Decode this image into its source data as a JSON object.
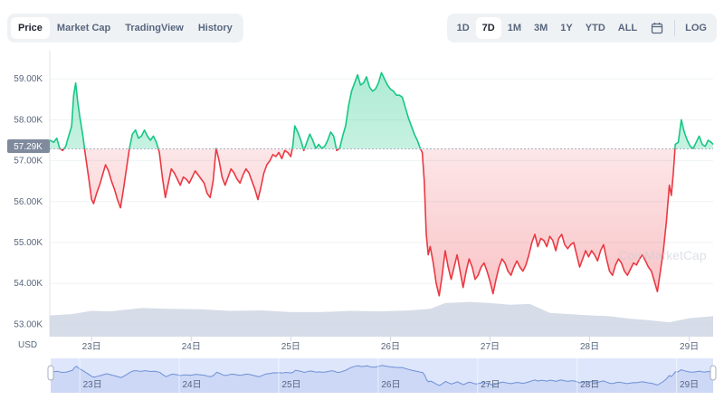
{
  "tabs": [
    {
      "label": "Price",
      "active": true
    },
    {
      "label": "Market Cap",
      "active": false
    },
    {
      "label": "TradingView",
      "active": false
    },
    {
      "label": "History",
      "active": false
    }
  ],
  "ranges": [
    {
      "label": "1D",
      "active": false
    },
    {
      "label": "7D",
      "active": true
    },
    {
      "label": "1M",
      "active": false
    },
    {
      "label": "3M",
      "active": false
    },
    {
      "label": "1Y",
      "active": false
    },
    {
      "label": "YTD",
      "active": false
    },
    {
      "label": "ALL",
      "active": false
    }
  ],
  "log_label": "LOG",
  "currency_label": "USD",
  "current_price_label": "57.29K",
  "watermark": "CoinMarketCap",
  "colors": {
    "up": "#16c784",
    "down": "#ea3943",
    "volume": "#cfd6e4",
    "navigator": "#dde6fb",
    "navigator_line": "#6f8fd6",
    "current_tag": "#808a9d"
  },
  "chart_data": {
    "type": "line",
    "baseline": 57290,
    "ylim": [
      52700,
      59600
    ],
    "y_ticks": [
      53000,
      54000,
      55000,
      56000,
      57000,
      58000,
      59000
    ],
    "y_tick_labels": [
      "53.00K",
      "54.00K",
      "55.00K",
      "56.00K",
      "57.00K",
      "58.00K",
      "59.00K"
    ],
    "x_ticks": [
      23,
      24,
      25,
      26,
      27,
      28,
      29
    ],
    "x_tick_labels": [
      "23日",
      "24日",
      "25日",
      "26日",
      "27日",
      "28日",
      "29日"
    ],
    "xlim": [
      22.58,
      29.24
    ],
    "points": [
      [
        22.58,
        57500
      ],
      [
        22.62,
        57450
      ],
      [
        22.65,
        57550
      ],
      [
        22.68,
        57300
      ],
      [
        22.71,
        57250
      ],
      [
        22.74,
        57350
      ],
      [
        22.77,
        57600
      ],
      [
        22.8,
        57850
      ],
      [
        22.82,
        58600
      ],
      [
        22.84,
        58900
      ],
      [
        22.86,
        58450
      ],
      [
        22.88,
        58100
      ],
      [
        22.91,
        57650
      ],
      [
        22.94,
        57100
      ],
      [
        22.97,
        56600
      ],
      [
        23.0,
        56050
      ],
      [
        23.02,
        55950
      ],
      [
        23.05,
        56200
      ],
      [
        23.08,
        56400
      ],
      [
        23.11,
        56650
      ],
      [
        23.14,
        56900
      ],
      [
        23.17,
        56750
      ],
      [
        23.2,
        56500
      ],
      [
        23.23,
        56300
      ],
      [
        23.26,
        56050
      ],
      [
        23.29,
        55850
      ],
      [
        23.32,
        56300
      ],
      [
        23.35,
        56800
      ],
      [
        23.38,
        57300
      ],
      [
        23.41,
        57650
      ],
      [
        23.44,
        57750
      ],
      [
        23.47,
        57550
      ],
      [
        23.5,
        57600
      ],
      [
        23.53,
        57750
      ],
      [
        23.56,
        57600
      ],
      [
        23.59,
        57500
      ],
      [
        23.62,
        57600
      ],
      [
        23.65,
        57450
      ],
      [
        23.68,
        57200
      ],
      [
        23.71,
        56600
      ],
      [
        23.74,
        56100
      ],
      [
        23.77,
        56450
      ],
      [
        23.8,
        56800
      ],
      [
        23.83,
        56700
      ],
      [
        23.86,
        56550
      ],
      [
        23.89,
        56400
      ],
      [
        23.92,
        56600
      ],
      [
        23.95,
        56550
      ],
      [
        23.98,
        56450
      ],
      [
        24.01,
        56600
      ],
      [
        24.04,
        56750
      ],
      [
        24.07,
        56650
      ],
      [
        24.1,
        56550
      ],
      [
        24.13,
        56450
      ],
      [
        24.16,
        56200
      ],
      [
        24.19,
        56100
      ],
      [
        24.22,
        56500
      ],
      [
        24.25,
        57300
      ],
      [
        24.28,
        57000
      ],
      [
        24.31,
        56600
      ],
      [
        24.34,
        56400
      ],
      [
        24.37,
        56600
      ],
      [
        24.4,
        56800
      ],
      [
        24.43,
        56700
      ],
      [
        24.46,
        56550
      ],
      [
        24.49,
        56450
      ],
      [
        24.52,
        56650
      ],
      [
        24.55,
        56800
      ],
      [
        24.58,
        56700
      ],
      [
        24.61,
        56500
      ],
      [
        24.64,
        56300
      ],
      [
        24.67,
        56050
      ],
      [
        24.7,
        56350
      ],
      [
        24.73,
        56700
      ],
      [
        24.76,
        56900
      ],
      [
        24.79,
        57000
      ],
      [
        24.82,
        57150
      ],
      [
        24.85,
        57100
      ],
      [
        24.88,
        57200
      ],
      [
        24.91,
        57050
      ],
      [
        24.94,
        57250
      ],
      [
        24.97,
        57200
      ],
      [
        25.0,
        57100
      ],
      [
        25.02,
        57350
      ],
      [
        25.04,
        57850
      ],
      [
        25.07,
        57700
      ],
      [
        25.1,
        57500
      ],
      [
        25.13,
        57250
      ],
      [
        25.16,
        57450
      ],
      [
        25.19,
        57650
      ],
      [
        25.22,
        57500
      ],
      [
        25.25,
        57300
      ],
      [
        25.28,
        57400
      ],
      [
        25.31,
        57300
      ],
      [
        25.34,
        57350
      ],
      [
        25.37,
        57500
      ],
      [
        25.4,
        57700
      ],
      [
        25.43,
        57600
      ],
      [
        25.46,
        57250
      ],
      [
        25.49,
        57300
      ],
      [
        25.52,
        57600
      ],
      [
        25.55,
        57850
      ],
      [
        25.58,
        58350
      ],
      [
        25.61,
        58700
      ],
      [
        25.64,
        58900
      ],
      [
        25.67,
        59100
      ],
      [
        25.7,
        58850
      ],
      [
        25.73,
        58900
      ],
      [
        25.76,
        59050
      ],
      [
        25.79,
        58800
      ],
      [
        25.82,
        58700
      ],
      [
        25.85,
        58750
      ],
      [
        25.88,
        58900
      ],
      [
        25.91,
        59150
      ],
      [
        25.94,
        59000
      ],
      [
        25.97,
        58850
      ],
      [
        26.0,
        58750
      ],
      [
        26.03,
        58700
      ],
      [
        26.06,
        58600
      ],
      [
        26.09,
        58600
      ],
      [
        26.12,
        58550
      ],
      [
        26.15,
        58300
      ],
      [
        26.18,
        58050
      ],
      [
        26.21,
        57850
      ],
      [
        26.24,
        57650
      ],
      [
        26.27,
        57500
      ],
      [
        26.3,
        57300
      ],
      [
        26.32,
        57200
      ],
      [
        26.34,
        56500
      ],
      [
        26.36,
        55200
      ],
      [
        26.38,
        54700
      ],
      [
        26.4,
        54900
      ],
      [
        26.43,
        54500
      ],
      [
        26.46,
        54000
      ],
      [
        26.49,
        53700
      ],
      [
        26.52,
        54200
      ],
      [
        26.55,
        54800
      ],
      [
        26.58,
        54400
      ],
      [
        26.61,
        54100
      ],
      [
        26.64,
        54400
      ],
      [
        26.67,
        54700
      ],
      [
        26.7,
        54300
      ],
      [
        26.73,
        53900
      ],
      [
        26.76,
        54300
      ],
      [
        26.79,
        54600
      ],
      [
        26.82,
        54400
      ],
      [
        26.85,
        54100
      ],
      [
        26.88,
        54200
      ],
      [
        26.91,
        54400
      ],
      [
        26.94,
        54500
      ],
      [
        26.97,
        54300
      ],
      [
        27.0,
        54050
      ],
      [
        27.03,
        53750
      ],
      [
        27.06,
        54100
      ],
      [
        27.09,
        54400
      ],
      [
        27.12,
        54600
      ],
      [
        27.15,
        54500
      ],
      [
        27.18,
        54300
      ],
      [
        27.21,
        54200
      ],
      [
        27.24,
        54400
      ],
      [
        27.27,
        54550
      ],
      [
        27.3,
        54400
      ],
      [
        27.33,
        54300
      ],
      [
        27.36,
        54450
      ],
      [
        27.39,
        54700
      ],
      [
        27.42,
        55000
      ],
      [
        27.45,
        55200
      ],
      [
        27.48,
        54900
      ],
      [
        27.51,
        55100
      ],
      [
        27.54,
        55050
      ],
      [
        27.57,
        54900
      ],
      [
        27.6,
        55150
      ],
      [
        27.63,
        55050
      ],
      [
        27.66,
        54800
      ],
      [
        27.69,
        55100
      ],
      [
        27.72,
        55200
      ],
      [
        27.75,
        54950
      ],
      [
        27.78,
        54850
      ],
      [
        27.81,
        54950
      ],
      [
        27.84,
        55000
      ],
      [
        27.87,
        54700
      ],
      [
        27.9,
        54400
      ],
      [
        27.93,
        54600
      ],
      [
        27.96,
        54800
      ],
      [
        27.99,
        54650
      ],
      [
        28.02,
        54800
      ],
      [
        28.05,
        54700
      ],
      [
        28.08,
        54550
      ],
      [
        28.11,
        54800
      ],
      [
        28.14,
        54950
      ],
      [
        28.17,
        54600
      ],
      [
        28.2,
        54300
      ],
      [
        28.23,
        54200
      ],
      [
        28.26,
        54450
      ],
      [
        28.29,
        54600
      ],
      [
        28.32,
        54500
      ],
      [
        28.35,
        54300
      ],
      [
        28.38,
        54200
      ],
      [
        28.41,
        54350
      ],
      [
        28.44,
        54500
      ],
      [
        28.47,
        54450
      ],
      [
        28.5,
        54600
      ],
      [
        28.53,
        54700
      ],
      [
        28.56,
        54550
      ],
      [
        28.59,
        54400
      ],
      [
        28.62,
        54300
      ],
      [
        28.65,
        54050
      ],
      [
        28.68,
        53800
      ],
      [
        28.71,
        54300
      ],
      [
        28.74,
        54800
      ],
      [
        28.77,
        55500
      ],
      [
        28.8,
        56400
      ],
      [
        28.82,
        56150
      ],
      [
        28.84,
        56700
      ],
      [
        28.86,
        57400
      ],
      [
        28.89,
        57450
      ],
      [
        28.92,
        58000
      ],
      [
        28.95,
        57700
      ],
      [
        28.98,
        57500
      ],
      [
        29.01,
        57350
      ],
      [
        29.04,
        57300
      ],
      [
        29.07,
        57450
      ],
      [
        29.1,
        57600
      ],
      [
        29.13,
        57400
      ],
      [
        29.16,
        57350
      ],
      [
        29.19,
        57500
      ],
      [
        29.22,
        57450
      ],
      [
        29.24,
        57400
      ]
    ],
    "volume": [
      [
        22.58,
        53.22
      ],
      [
        22.8,
        53.25
      ],
      [
        23.0,
        53.33
      ],
      [
        23.2,
        53.32
      ],
      [
        23.5,
        53.4
      ],
      [
        23.8,
        53.38
      ],
      [
        24.1,
        53.37
      ],
      [
        24.4,
        53.33
      ],
      [
        24.7,
        53.34
      ],
      [
        25.0,
        53.3
      ],
      [
        25.3,
        53.3
      ],
      [
        25.6,
        53.33
      ],
      [
        25.9,
        53.32
      ],
      [
        26.2,
        53.34
      ],
      [
        26.4,
        53.38
      ],
      [
        26.55,
        53.52
      ],
      [
        26.8,
        53.55
      ],
      [
        27.0,
        53.52
      ],
      [
        27.2,
        53.48
      ],
      [
        27.4,
        53.5
      ],
      [
        27.6,
        53.28
      ],
      [
        27.8,
        53.25
      ],
      [
        28.0,
        53.22
      ],
      [
        28.2,
        53.2
      ],
      [
        28.4,
        53.14
      ],
      [
        28.6,
        53.1
      ],
      [
        28.8,
        53.05
      ],
      [
        29.0,
        53.15
      ],
      [
        29.24,
        53.2
      ]
    ]
  }
}
